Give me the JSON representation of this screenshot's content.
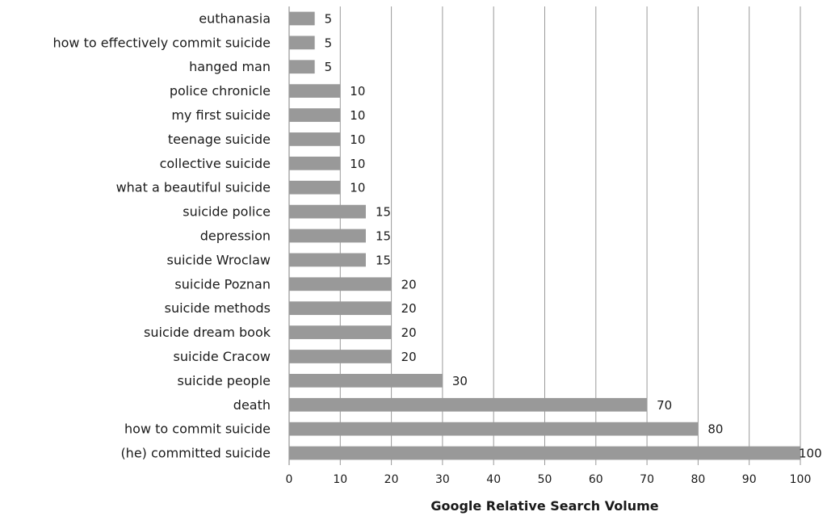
{
  "chart_data": {
    "type": "bar",
    "orientation": "horizontal",
    "categories": [
      "euthanasia",
      "how to effectively commit suicide",
      "hanged man",
      "police chronicle",
      "my first suicide",
      "teenage suicide",
      "collective suicide",
      "what a beautiful suicide",
      "suicide police",
      "depression",
      "suicide Wroclaw",
      "suicide Poznan",
      "suicide methods",
      "suicide dream book",
      "suicide Cracow",
      "suicide people",
      "death",
      "how to commit suicide",
      "(he) committed suicide"
    ],
    "values": [
      5,
      5,
      5,
      10,
      10,
      10,
      10,
      10,
      15,
      15,
      15,
      20,
      20,
      20,
      20,
      30,
      70,
      80,
      100
    ],
    "xticks": [
      "0",
      "10",
      "20",
      "30",
      "40",
      "50",
      "60",
      "70",
      "80",
      "90",
      "100"
    ],
    "xlim": [
      0,
      100
    ],
    "xlabel": "Google Relative Search Volume",
    "grid": "vertical",
    "legend": "none",
    "colors": {
      "bar": "#999999",
      "grid": "#9a9a9a"
    }
  }
}
